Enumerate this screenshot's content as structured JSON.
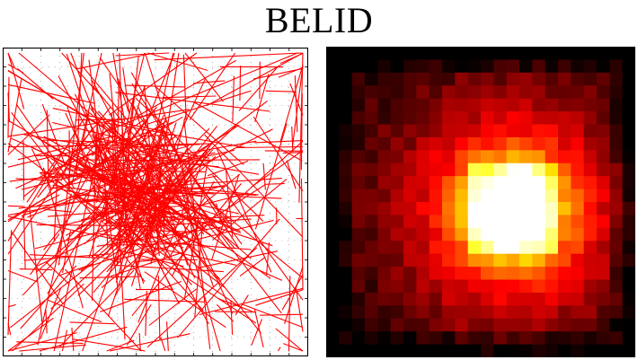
{
  "title": "BELID",
  "colors": {
    "lines": "#ff0000",
    "frame": "#000000",
    "grid_dots": "#777777",
    "background": "#ffffff"
  },
  "panels": {
    "left": {
      "kind": "line-segment-plot",
      "segment_count": 420,
      "concentration": "center-left"
    },
    "right": {
      "kind": "heatmap",
      "colormap": "hot",
      "grid_size": 24,
      "hotspot": "center-right"
    }
  }
}
